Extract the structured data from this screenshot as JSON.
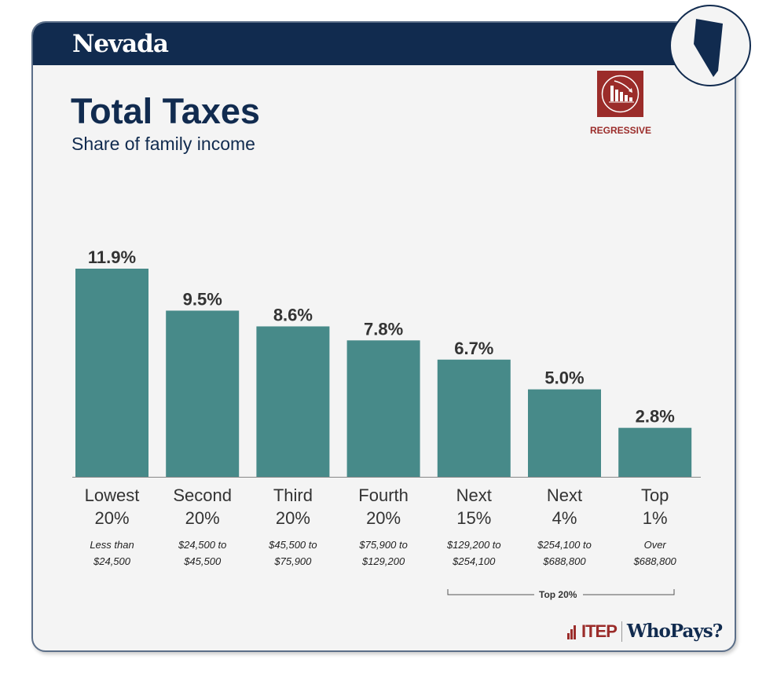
{
  "header": {
    "state": "Nevada"
  },
  "title": "Total Taxes",
  "subtitle": "Share of family income",
  "badge": {
    "label": "REGRESSIVE",
    "icon": "regressive-chart-icon",
    "color": "#9b2c2a"
  },
  "group_label": "Top 20%",
  "logo": {
    "itep": "ITEP",
    "whopays": "WhoPays?"
  },
  "chart_data": {
    "type": "bar",
    "categories": [
      "Lowest 20%",
      "Second 20%",
      "Third 20%",
      "Fourth 20%",
      "Next 15%",
      "Next 4%",
      "Top 1%"
    ],
    "category_lines": [
      [
        "Lowest",
        "20%"
      ],
      [
        "Second",
        "20%"
      ],
      [
        "Third",
        "20%"
      ],
      [
        "Fourth",
        "20%"
      ],
      [
        "Next",
        "15%"
      ],
      [
        "Next",
        "4%"
      ],
      [
        "Top",
        "1%"
      ]
    ],
    "income_ranges": [
      [
        "Less than",
        "$24,500"
      ],
      [
        "$24,500 to",
        "$45,500"
      ],
      [
        "$45,500 to",
        "$75,900"
      ],
      [
        "$75,900 to",
        "$129,200"
      ],
      [
        "$129,200 to",
        "$254,100"
      ],
      [
        "$254,100 to",
        "$688,800"
      ],
      [
        "Over",
        "$688,800"
      ]
    ],
    "values": [
      11.9,
      9.5,
      8.6,
      7.8,
      6.7,
      5.0,
      2.8
    ],
    "labels": [
      "11.9%",
      "9.5%",
      "8.6%",
      "7.8%",
      "6.7%",
      "5.0%",
      "2.8%"
    ],
    "bar_color": "#478a89",
    "ylim": [
      0,
      11.9
    ]
  }
}
